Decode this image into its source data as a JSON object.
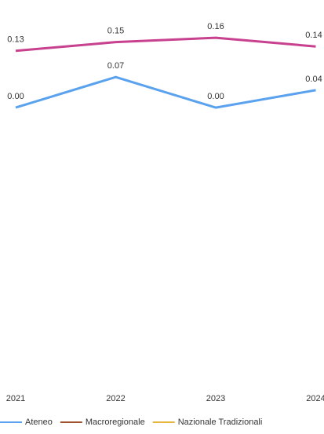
{
  "chart_data": {
    "type": "line",
    "categories": [
      "2021",
      "2022",
      "2023",
      "2024"
    ],
    "series": [
      {
        "color": "#c8418f",
        "values": [
          0.13,
          0.15,
          0.16,
          0.14
        ],
        "value_labels": [
          "0.13",
          "0.15",
          "0.16",
          "0.14"
        ]
      },
      {
        "name": "Ateneo",
        "color": "#5aa2ee",
        "values": [
          0.0,
          0.07,
          0.0,
          0.04
        ],
        "value_labels": [
          "0.00",
          "0.07",
          "0.00",
          "0.04"
        ]
      },
      {
        "name": "Macroregionale",
        "color": "#a0522d",
        "values": [
          null,
          null,
          null,
          null
        ]
      },
      {
        "name": "Nazionale Tradizionali",
        "color": "#e8b53c",
        "values": [
          null,
          null,
          null,
          null
        ]
      }
    ],
    "ylim": [
      -0.6,
      0.25
    ]
  }
}
